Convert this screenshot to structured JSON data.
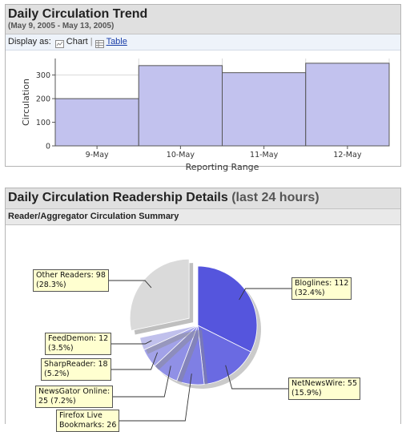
{
  "trend": {
    "title": "Daily Circulation Trend",
    "date_range": "(May 9, 2005 - May 13, 2005)",
    "display_as_label": "Display as:",
    "chart_option": "Chart",
    "table_option": "Table"
  },
  "readership": {
    "title_main": "Daily Circulation Readership Details",
    "title_suffix": "(last 24 hours)",
    "subtitle": "Reader/Aggregator Circulation Summary"
  },
  "chart_data": [
    {
      "type": "bar",
      "categories": [
        "9-May",
        "10-May",
        "11-May",
        "12-May"
      ],
      "values": [
        200,
        340,
        310,
        350
      ],
      "xlabel": "Reporting Range",
      "ylabel": "Circulation",
      "ylim": [
        0,
        370
      ],
      "yticks": [
        0,
        100,
        200,
        300
      ],
      "grid": true,
      "bar_color": "#c2c2ee"
    },
    {
      "type": "pie",
      "slices": [
        {
          "label_line1": "Bloglines: 112",
          "label_line2": "(32.4%)",
          "value": 112,
          "color": "#5555dd"
        },
        {
          "label_line1": "NetNewsWire: 55",
          "label_line2": "(15.9%)",
          "value": 55,
          "color": "#6a6ae2"
        },
        {
          "label_line1": "Firefox Live",
          "label_line2": "Bookmarks: 26",
          "value": 26,
          "color": "#7f7fe4"
        },
        {
          "label_line1": "NewsGator Online:",
          "label_line2": "25 (7.2%)",
          "value": 25,
          "color": "#9090e6"
        },
        {
          "label_line1": "SharpReader: 18",
          "label_line2": "(5.2%)",
          "value": 18,
          "color": "#a2a2e8"
        },
        {
          "label_line1": "FeedDemon: 12",
          "label_line2": "(3.5%)",
          "value": 12,
          "color": "#c0c0ec"
        },
        {
          "label_line1": "Other Readers: 98",
          "label_line2": "(28.3%)",
          "value": 98,
          "color": "#dadada"
        }
      ]
    }
  ]
}
